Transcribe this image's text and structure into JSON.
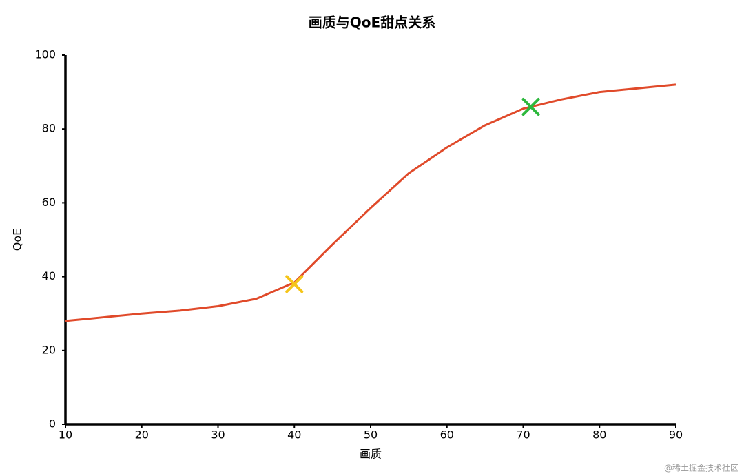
{
  "chart_data": {
    "type": "line",
    "title": "画质与QoE甜点关系",
    "x_label": "画质",
    "y_label": "QoE",
    "x": [
      10,
      15,
      20,
      25,
      30,
      35,
      40,
      45,
      50,
      55,
      60,
      65,
      70,
      75,
      80,
      85,
      90
    ],
    "series": [
      {
        "name": "QoE",
        "color": "#e04a2a",
        "values": [
          28,
          29,
          30,
          30.8,
          32,
          34,
          38.4,
          48.7,
          58.6,
          68,
          75,
          81,
          85.5,
          88,
          90,
          91,
          92
        ]
      }
    ],
    "highlights": [
      {
        "x": 40,
        "y": 38,
        "color": "#f5c518"
      },
      {
        "x": 71,
        "y": 86,
        "color": "#2db83d"
      }
    ],
    "xlim": [
      10,
      90
    ],
    "xticks": [
      10,
      20,
      30,
      40,
      50,
      60,
      70,
      80,
      90
    ],
    "ylim": [
      0,
      100
    ],
    "yticks": [
      0,
      20,
      40,
      60,
      80,
      100
    ]
  },
  "watermark": "@稀土掘金技术社区"
}
